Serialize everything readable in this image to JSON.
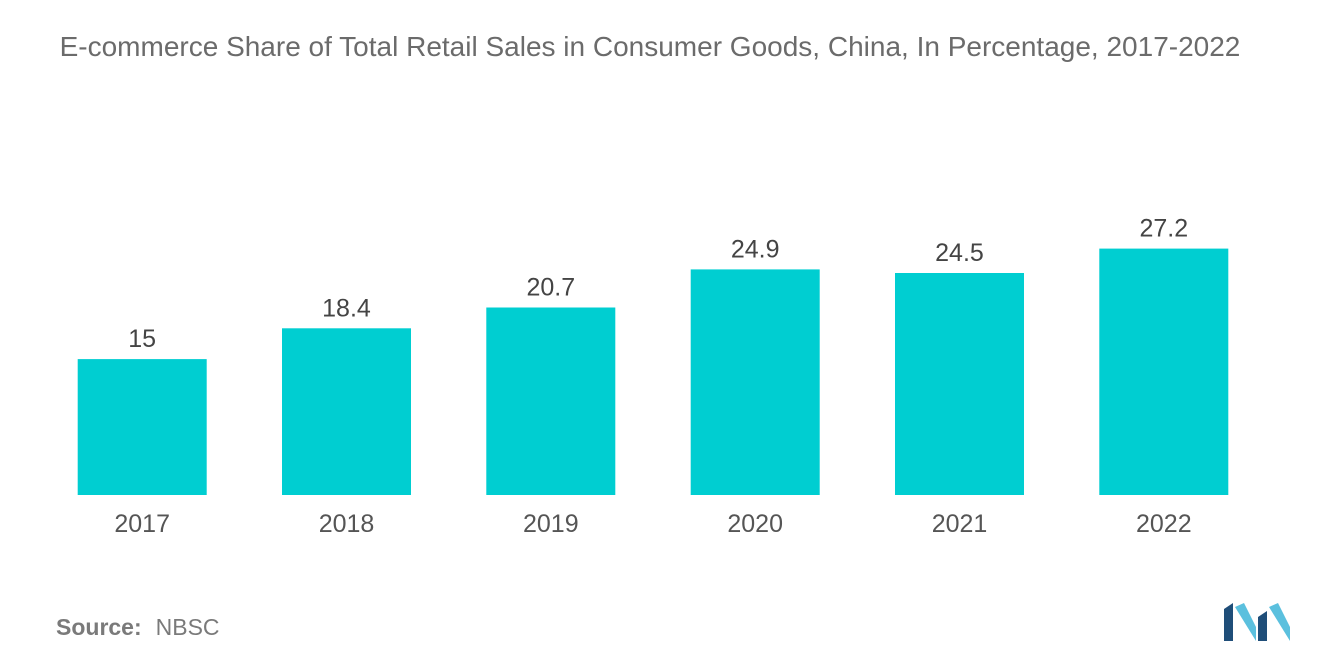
{
  "chart_data": {
    "type": "bar",
    "title": "E-commerce Share of Total Retail Sales in Consumer Goods, China, In Percentage, 2017-2022",
    "categories": [
      "2017",
      "2018",
      "2019",
      "2020",
      "2021",
      "2022"
    ],
    "values": [
      15,
      18.4,
      20.7,
      24.9,
      24.5,
      27.2
    ],
    "value_labels": [
      "15",
      "18.4",
      "20.7",
      "24.9",
      "24.5",
      "27.2"
    ],
    "xlabel": "",
    "ylabel": "",
    "grid": false,
    "legend": "none",
    "colors": {
      "bar": "#00CED1",
      "label": "#444444",
      "tick": "#555555"
    }
  },
  "source": {
    "label": "Source:",
    "value": "NBSC"
  },
  "logo": {
    "icon": "mordor-logo-icon",
    "colors": [
      "#1f4e79",
      "#5bc0de"
    ]
  }
}
